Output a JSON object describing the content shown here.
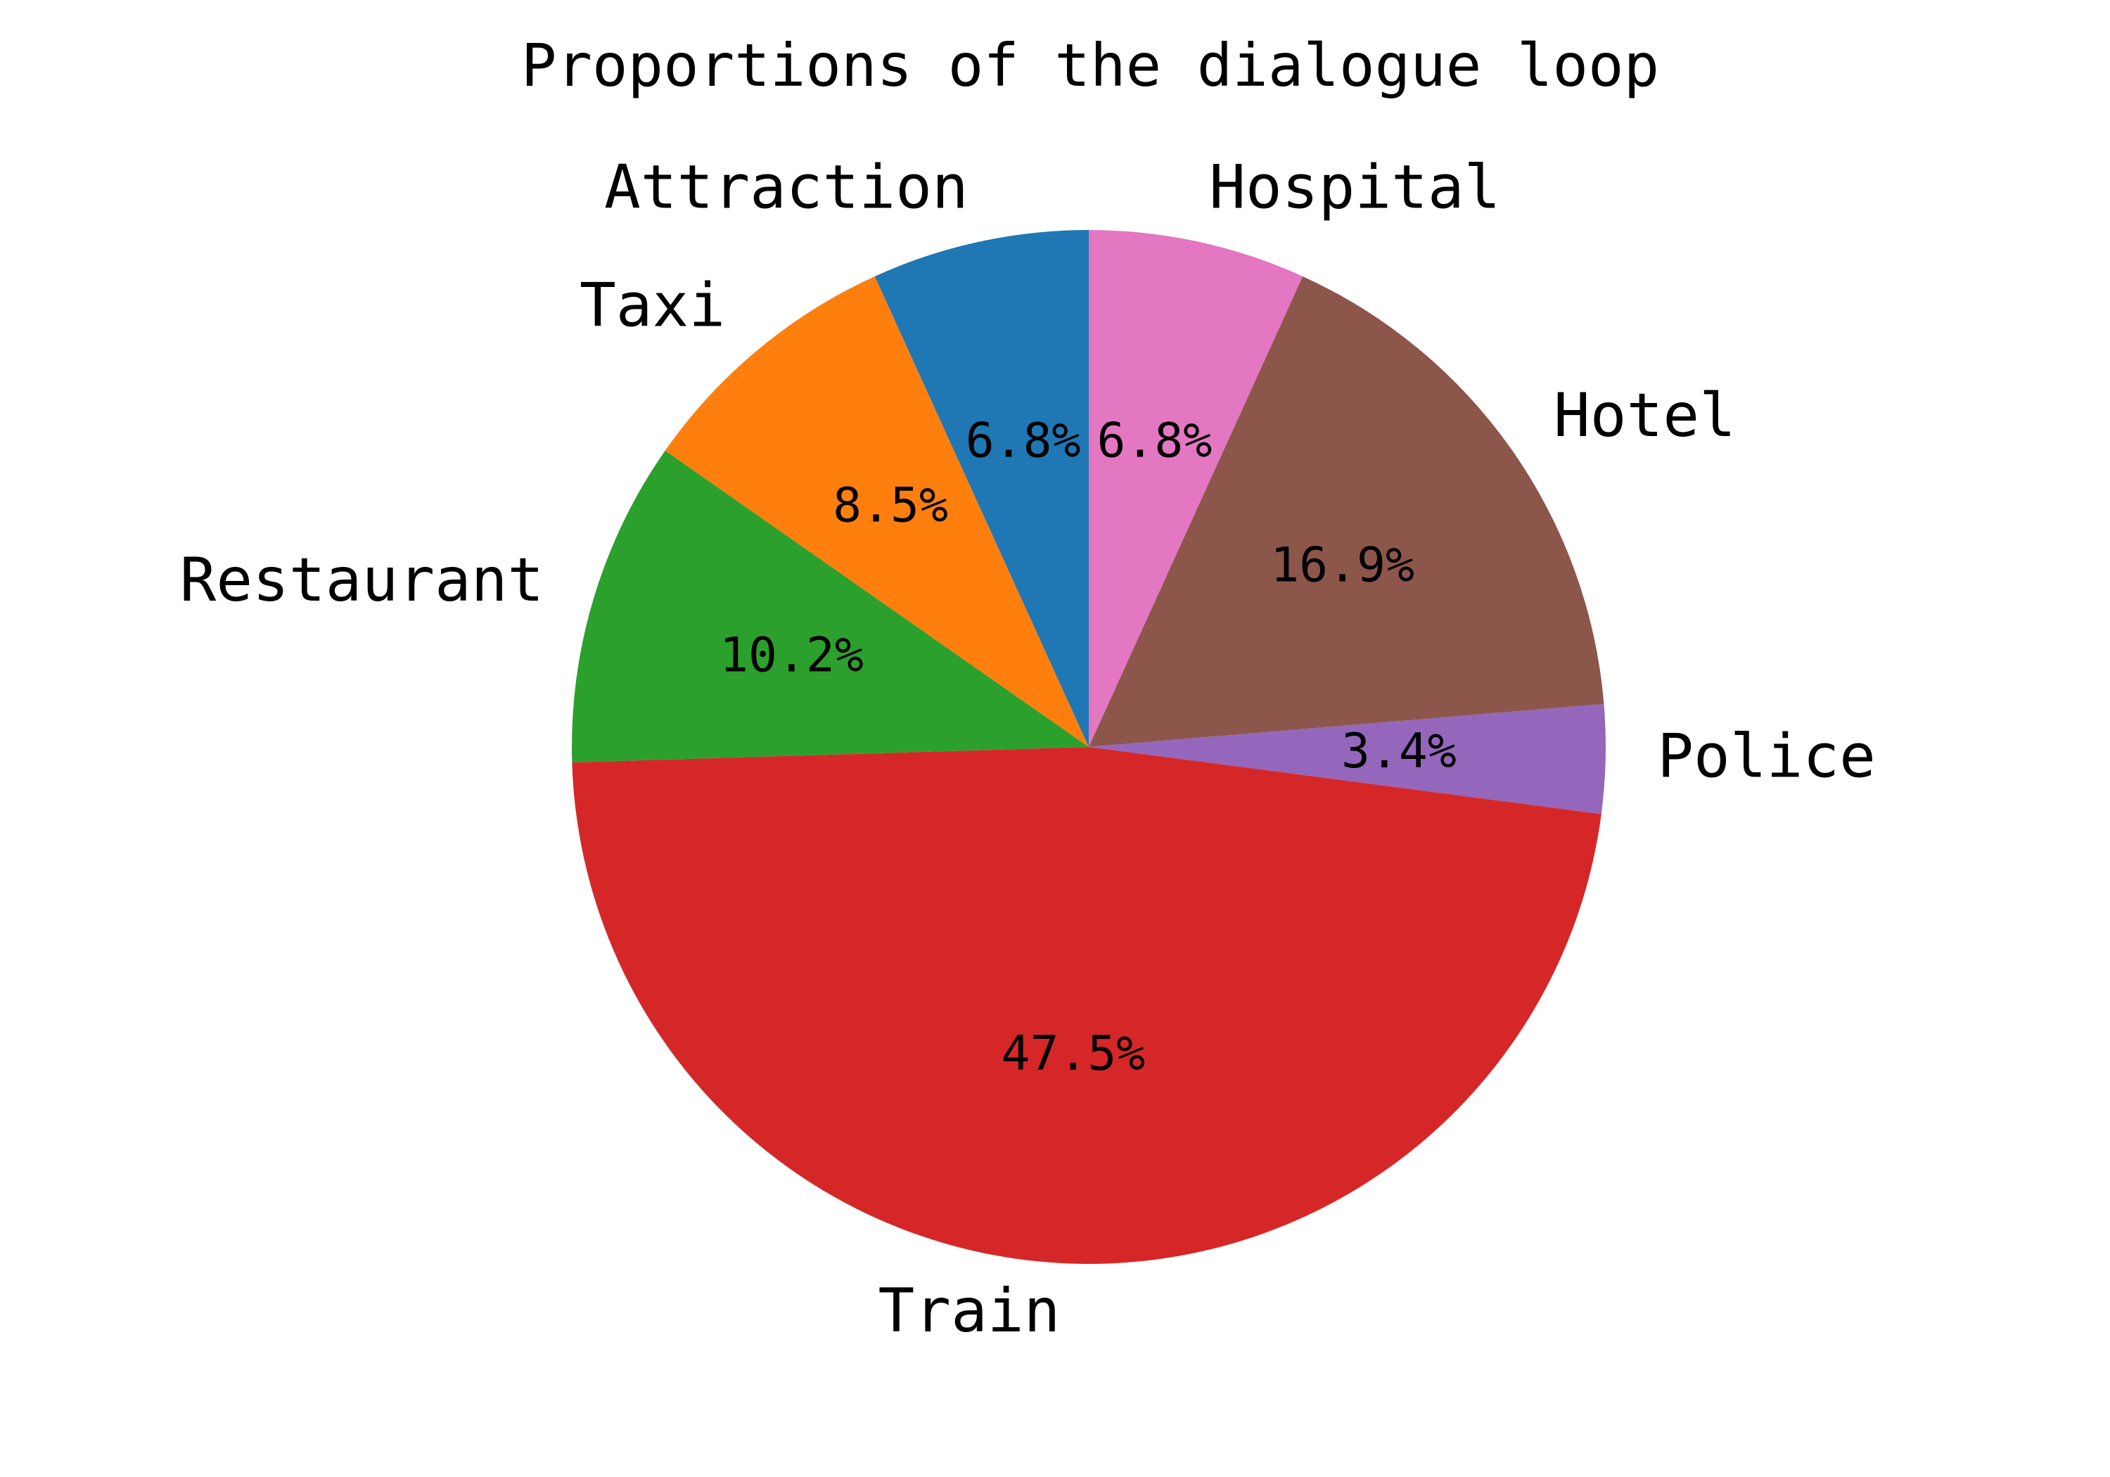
{
  "chart_data": {
    "type": "pie",
    "title": "Proportions of the dialogue loop",
    "slices": [
      {
        "label": "Hospital",
        "value": 6.8,
        "pct_label": "6.8%",
        "color": "#e377c2"
      },
      {
        "label": "Hotel",
        "value": 16.9,
        "pct_label": "16.9%",
        "color": "#8c564b"
      },
      {
        "label": "Police",
        "value": 3.4,
        "pct_label": "3.4%",
        "color": "#9467bd"
      },
      {
        "label": "Train",
        "value": 47.5,
        "pct_label": "47.5%",
        "color": "#d62728"
      },
      {
        "label": "Restaurant",
        "value": 10.2,
        "pct_label": "10.2%",
        "color": "#2ca02c"
      },
      {
        "label": "Taxi",
        "value": 8.5,
        "pct_label": "8.5%",
        "color": "#ff7f0e"
      },
      {
        "label": "Attraction",
        "value": 6.8,
        "pct_label": "6.8%",
        "color": "#1f77b4"
      }
    ],
    "start_angle": "top",
    "direction": "clockwise"
  }
}
